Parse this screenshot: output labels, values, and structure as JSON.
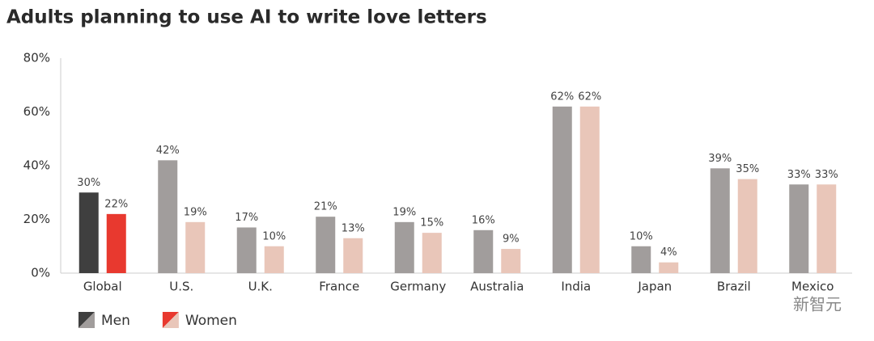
{
  "chart_data": {
    "type": "bar",
    "title": "Adults planning to use AI to write love letters",
    "categories": [
      "Global",
      "U.S.",
      "U.K.",
      "France",
      "Germany",
      "Australia",
      "India",
      "Japan",
      "Brazil",
      "Mexico"
    ],
    "series": [
      {
        "name": "Men",
        "color": "#a19d9c",
        "colors": [
          "#3f3f3f",
          "#a19d9c",
          "#a19d9c",
          "#a19d9c",
          "#a19d9c",
          "#a19d9c",
          "#a19d9c",
          "#a19d9c",
          "#a19d9c",
          "#a19d9c"
        ],
        "values": [
          30,
          42,
          17,
          21,
          19,
          16,
          62,
          10,
          39,
          33
        ],
        "value_labels": [
          "30%",
          "42%",
          "17%",
          "21%",
          "19%",
          "16%",
          "62%",
          "10%",
          "39%",
          "33%"
        ]
      },
      {
        "name": "Women",
        "color": "#e9c6b9",
        "colors": [
          "#e8392f",
          "#e9c6b9",
          "#e9c6b9",
          "#e9c6b9",
          "#e9c6b9",
          "#e9c6b9",
          "#e9c6b9",
          "#e9c6b9",
          "#e9c6b9",
          "#e9c6b9"
        ],
        "values": [
          22,
          19,
          10,
          13,
          15,
          9,
          62,
          4,
          35,
          33
        ],
        "value_labels": [
          "22%",
          "19%",
          "10%",
          "13%",
          "15%",
          "9%",
          "62%",
          "4%",
          "35%",
          "33%"
        ]
      }
    ],
    "ylim": [
      0,
      80
    ],
    "yticks": [
      {
        "value": 0,
        "label": "0%"
      },
      {
        "value": 20,
        "label": "20%"
      },
      {
        "value": 40,
        "label": "40%"
      },
      {
        "value": 60,
        "label": "60%"
      },
      {
        "value": 80,
        "label": "80%"
      }
    ],
    "grid": false,
    "watermark": "新智元"
  }
}
